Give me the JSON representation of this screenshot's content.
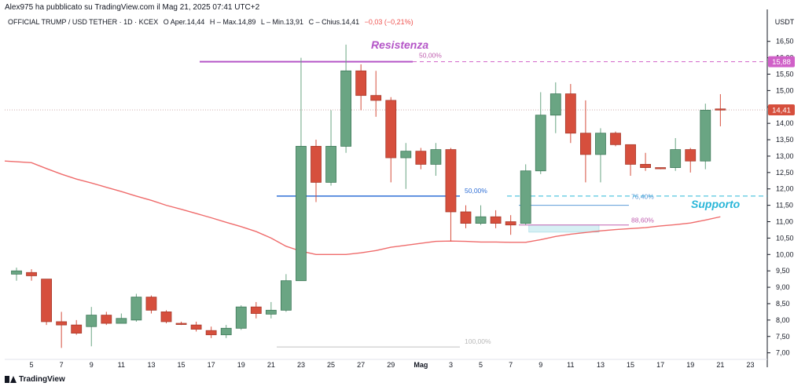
{
  "header": {
    "publisher": "Alex975 ha pubblicato su TradingView.com il Mag 21, 2025 07:41 UTC+2"
  },
  "legend": {
    "symbol": "OFFICIAL TRUMP / USD TETHER · 1D · KCEX",
    "open_label": "O",
    "open_value": "Aper.14,44",
    "high_value": "H – Max.14,89",
    "low_value": "L – Min.13,91",
    "close_value": "C – Chius.14,41",
    "change_value": "−0,03 (−0,21%)"
  },
  "footer": {
    "brand": "TradingView"
  },
  "colors": {
    "up": "#6aa583",
    "down": "#d64f3d",
    "ma": "#ef6b6b",
    "resist": "#b455c7",
    "support": "#29b6d8",
    "fib_blue": "#2f6fd6",
    "fib_pink": "#c060b0",
    "fib_grey": "#c0c0c0",
    "price_pink": "#d060c8",
    "price_current": "#d64f3d"
  },
  "chart_data": {
    "type": "candlestick",
    "title": "OFFICIAL TRUMP / USD TETHER · 1D · KCEX",
    "ylabel": "USDT",
    "ylim": [
      6.8,
      16.9
    ],
    "yticks": [
      "7,00",
      "7,50",
      "8,00",
      "8,50",
      "9,00",
      "9,50",
      "10,00",
      "10,50",
      "11,00",
      "11,50",
      "12,00",
      "12,50",
      "13,00",
      "13,50",
      "14,00",
      "14,50",
      "15,00",
      "15,50",
      "16,00",
      "16,50"
    ],
    "xticks": [
      {
        "label": "5",
        "idx": 1
      },
      {
        "label": "7",
        "idx": 3
      },
      {
        "label": "9",
        "idx": 5
      },
      {
        "label": "11",
        "idx": 7
      },
      {
        "label": "13",
        "idx": 9
      },
      {
        "label": "15",
        "idx": 11
      },
      {
        "label": "17",
        "idx": 13
      },
      {
        "label": "19",
        "idx": 15
      },
      {
        "label": "21",
        "idx": 17
      },
      {
        "label": "23",
        "idx": 19
      },
      {
        "label": "25",
        "idx": 21
      },
      {
        "label": "27",
        "idx": 23
      },
      {
        "label": "29",
        "idx": 25
      },
      {
        "label": "Mag",
        "idx": 27
      },
      {
        "label": "3",
        "idx": 29
      },
      {
        "label": "5",
        "idx": 31
      },
      {
        "label": "7",
        "idx": 33
      },
      {
        "label": "9",
        "idx": 35
      },
      {
        "label": "11",
        "idx": 37
      },
      {
        "label": "13",
        "idx": 39
      },
      {
        "label": "15",
        "idx": 41
      },
      {
        "label": "17",
        "idx": 43
      },
      {
        "label": "19",
        "idx": 45
      },
      {
        "label": "21",
        "idx": 47
      },
      {
        "label": "23",
        "idx": 49
      }
    ],
    "candles": [
      {
        "o": 9.4,
        "h": 9.6,
        "l": 9.2,
        "c": 9.5
      },
      {
        "o": 9.45,
        "h": 9.55,
        "l": 9.2,
        "c": 9.35
      },
      {
        "o": 9.25,
        "h": 9.25,
        "l": 7.85,
        "c": 7.95
      },
      {
        "o": 7.95,
        "h": 8.25,
        "l": 7.15,
        "c": 7.85
      },
      {
        "o": 7.85,
        "h": 8.0,
        "l": 7.55,
        "c": 7.6
      },
      {
        "o": 7.8,
        "h": 8.4,
        "l": 7.2,
        "c": 8.15
      },
      {
        "o": 8.15,
        "h": 8.25,
        "l": 7.85,
        "c": 7.9
      },
      {
        "o": 7.9,
        "h": 8.2,
        "l": 7.9,
        "c": 8.05
      },
      {
        "o": 8.0,
        "h": 8.8,
        "l": 7.95,
        "c": 8.7
      },
      {
        "o": 8.7,
        "h": 8.75,
        "l": 8.2,
        "c": 8.3
      },
      {
        "o": 8.25,
        "h": 8.3,
        "l": 7.9,
        "c": 7.95
      },
      {
        "o": 7.9,
        "h": 7.95,
        "l": 7.85,
        "c": 7.88
      },
      {
        "o": 7.85,
        "h": 7.95,
        "l": 7.65,
        "c": 7.72
      },
      {
        "o": 7.68,
        "h": 7.8,
        "l": 7.45,
        "c": 7.55
      },
      {
        "o": 7.55,
        "h": 7.85,
        "l": 7.45,
        "c": 7.75
      },
      {
        "o": 7.75,
        "h": 8.45,
        "l": 7.7,
        "c": 8.4
      },
      {
        "o": 8.4,
        "h": 8.55,
        "l": 8.05,
        "c": 8.2
      },
      {
        "o": 8.18,
        "h": 8.55,
        "l": 8.05,
        "c": 8.3
      },
      {
        "o": 8.3,
        "h": 9.4,
        "l": 8.25,
        "c": 9.2
      },
      {
        "o": 9.2,
        "h": 16.0,
        "l": 9.2,
        "c": 13.3
      },
      {
        "o": 13.3,
        "h": 13.5,
        "l": 11.6,
        "c": 12.2
      },
      {
        "o": 12.2,
        "h": 14.4,
        "l": 12.1,
        "c": 13.3
      },
      {
        "o": 13.3,
        "h": 16.4,
        "l": 13.1,
        "c": 15.6
      },
      {
        "o": 15.6,
        "h": 15.8,
        "l": 14.4,
        "c": 14.85
      },
      {
        "o": 14.85,
        "h": 15.6,
        "l": 14.2,
        "c": 14.7
      },
      {
        "o": 14.7,
        "h": 14.8,
        "l": 12.2,
        "c": 12.95
      },
      {
        "o": 12.95,
        "h": 13.4,
        "l": 12.0,
        "c": 13.15
      },
      {
        "o": 13.15,
        "h": 13.25,
        "l": 12.6,
        "c": 12.75
      },
      {
        "o": 12.75,
        "h": 13.4,
        "l": 12.4,
        "c": 13.2
      },
      {
        "o": 13.2,
        "h": 13.25,
        "l": 10.4,
        "c": 11.3
      },
      {
        "o": 11.3,
        "h": 11.5,
        "l": 10.8,
        "c": 10.95
      },
      {
        "o": 10.95,
        "h": 11.5,
        "l": 10.9,
        "c": 11.15
      },
      {
        "o": 11.15,
        "h": 11.35,
        "l": 10.8,
        "c": 10.95
      },
      {
        "o": 11.0,
        "h": 11.2,
        "l": 10.6,
        "c": 10.9
      },
      {
        "o": 10.95,
        "h": 12.75,
        "l": 10.9,
        "c": 12.55
      },
      {
        "o": 12.55,
        "h": 14.95,
        "l": 12.45,
        "c": 14.25
      },
      {
        "o": 14.25,
        "h": 15.25,
        "l": 13.7,
        "c": 14.9
      },
      {
        "o": 14.9,
        "h": 15.2,
        "l": 13.4,
        "c": 13.7
      },
      {
        "o": 13.7,
        "h": 14.7,
        "l": 12.2,
        "c": 13.05
      },
      {
        "o": 13.05,
        "h": 13.85,
        "l": 12.2,
        "c": 13.7
      },
      {
        "o": 13.7,
        "h": 13.75,
        "l": 13.3,
        "c": 13.35
      },
      {
        "o": 13.35,
        "h": 13.35,
        "l": 12.4,
        "c": 12.75
      },
      {
        "o": 12.75,
        "h": 13.1,
        "l": 12.55,
        "c": 12.65
      },
      {
        "o": 12.65,
        "h": 12.65,
        "l": 12.6,
        "c": 12.62
      },
      {
        "o": 12.65,
        "h": 13.55,
        "l": 12.55,
        "c": 13.2
      },
      {
        "o": 13.2,
        "h": 13.25,
        "l": 12.5,
        "c": 12.85
      },
      {
        "o": 12.85,
        "h": 14.6,
        "l": 12.6,
        "c": 14.4
      },
      {
        "o": 14.44,
        "h": 14.89,
        "l": 13.91,
        "c": 14.41
      }
    ],
    "ma": [
      12.85,
      12.8,
      12.62,
      12.45,
      12.3,
      12.18,
      12.05,
      11.92,
      11.78,
      11.65,
      11.5,
      11.38,
      11.25,
      11.12,
      10.98,
      10.85,
      10.7,
      10.5,
      10.25,
      10.1,
      10.0,
      10.0,
      10.0,
      10.05,
      10.12,
      10.22,
      10.28,
      10.34,
      10.4,
      10.41,
      10.4,
      10.38,
      10.38,
      10.37,
      10.37,
      10.45,
      10.55,
      10.62,
      10.67,
      10.72,
      10.76,
      10.79,
      10.82,
      10.87,
      10.91,
      10.96,
      11.05,
      11.15
    ],
    "hlines": [
      {
        "name": "resistance",
        "y": 15.88,
        "price_label": "15,88",
        "color_key": "resist"
      },
      {
        "name": "support",
        "y": 11.78,
        "color_key": "support"
      },
      {
        "name": "current-price",
        "y": 14.41,
        "price_label": "14,41",
        "color_key": "price_current"
      }
    ],
    "fib_levels": [
      {
        "label": "50,00%",
        "y": 15.88,
        "color_key": "fib_pink"
      },
      {
        "label": "50,00%",
        "y": 11.78,
        "color_key": "fib_blue"
      },
      {
        "label": "76,40%",
        "y": 11.5,
        "color_key": "fib_blue"
      },
      {
        "label": "88,60%",
        "y": 10.9,
        "color_key": "fib_pink"
      },
      {
        "label": "100,00%",
        "y": 7.18,
        "color_key": "fib_grey"
      }
    ],
    "annotations": [
      {
        "text": "Resistenza",
        "color_key": "resist"
      },
      {
        "text": "Supporto",
        "color_key": "support"
      }
    ]
  }
}
